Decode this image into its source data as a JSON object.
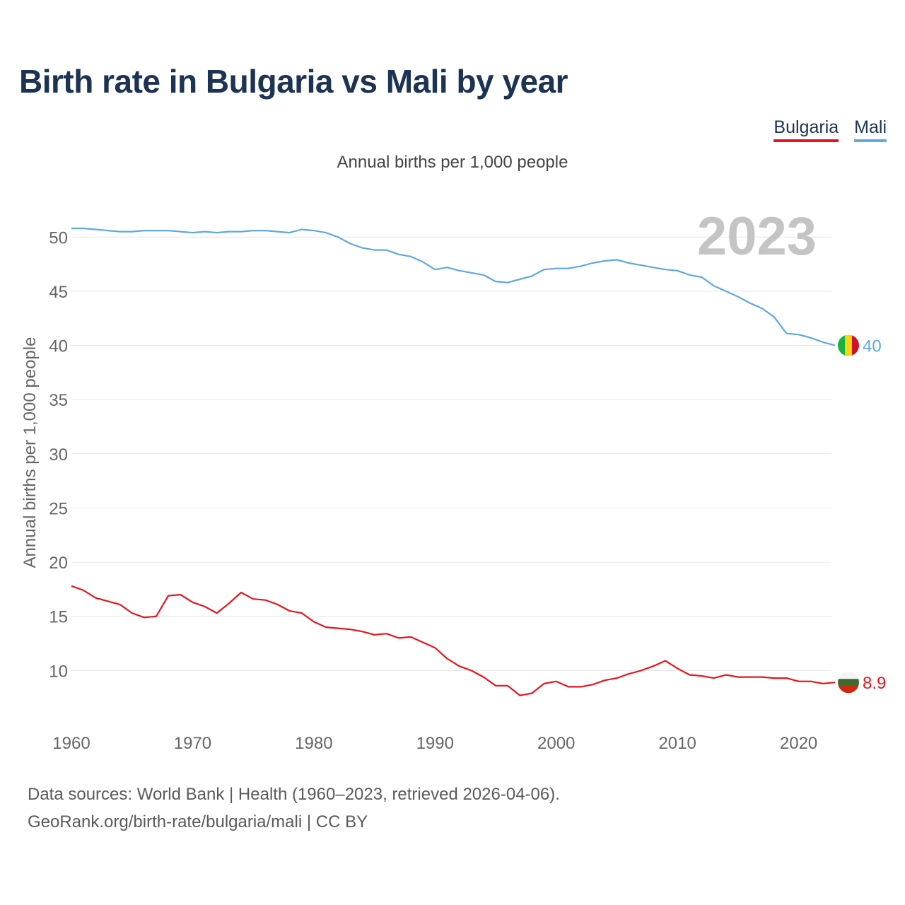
{
  "title": "Birth rate in Bulgaria vs Mali by year",
  "legend": {
    "bulgaria": "Bulgaria",
    "mali": "Mali"
  },
  "subtitle": "Annual births per 1,000 people",
  "footer": {
    "line1": "Data sources: World Bank | Health (1960–2023, retrieved 2026-04-06).",
    "line2": "GeoRank.org/birth-rate/bulgaria/mali | CC BY"
  },
  "chart_data": {
    "type": "line",
    "title": "Birth rate in Bulgaria vs Mali by year",
    "xlabel": "",
    "ylabel": "Annual births per 1,000 people",
    "year_watermark": "2023",
    "xlim": [
      1960,
      2023
    ],
    "ylim": [
      5,
      52.3
    ],
    "x_ticks": [
      1960,
      1970,
      1980,
      1990,
      2000,
      2010,
      2020
    ],
    "y_ticks": [
      10,
      15,
      20,
      25,
      30,
      35,
      40,
      45,
      50
    ],
    "grid": true,
    "legend_position": "top-right",
    "x": [
      1960,
      1961,
      1962,
      1963,
      1964,
      1965,
      1966,
      1967,
      1968,
      1969,
      1970,
      1971,
      1972,
      1973,
      1974,
      1975,
      1976,
      1977,
      1978,
      1979,
      1980,
      1981,
      1982,
      1983,
      1984,
      1985,
      1986,
      1987,
      1988,
      1989,
      1990,
      1991,
      1992,
      1993,
      1994,
      1995,
      1996,
      1997,
      1998,
      1999,
      2000,
      2001,
      2002,
      2003,
      2004,
      2005,
      2006,
      2007,
      2008,
      2009,
      2010,
      2011,
      2012,
      2013,
      2014,
      2015,
      2016,
      2017,
      2018,
      2019,
      2020,
      2021,
      2022,
      2023
    ],
    "series": [
      {
        "name": "Mali",
        "color": "#5ea8e4",
        "end_label": "40",
        "values": [
          50.8,
          50.8,
          50.7,
          50.6,
          50.5,
          50.5,
          50.6,
          50.6,
          50.6,
          50.5,
          50.4,
          50.5,
          50.4,
          50.5,
          50.5,
          50.6,
          50.6,
          50.5,
          50.4,
          50.7,
          50.6,
          50.4,
          50.0,
          49.4,
          49.0,
          48.8,
          48.8,
          48.4,
          48.2,
          47.7,
          47.0,
          47.2,
          46.9,
          46.7,
          46.5,
          45.9,
          45.8,
          46.1,
          46.4,
          47.0,
          47.1,
          47.1,
          47.3,
          47.6,
          47.8,
          47.9,
          47.6,
          47.4,
          47.2,
          47.0,
          46.9,
          46.5,
          46.3,
          45.5,
          45.0,
          44.5,
          43.9,
          43.4,
          42.6,
          41.1,
          41.0,
          40.7,
          40.3,
          40.0
        ]
      },
      {
        "name": "Bulgaria",
        "color": "#e8141b",
        "end_label": "8.9",
        "values": [
          17.8,
          17.4,
          16.7,
          16.4,
          16.1,
          15.3,
          14.9,
          15.0,
          16.9,
          17.0,
          16.3,
          15.9,
          15.3,
          16.2,
          17.2,
          16.6,
          16.5,
          16.1,
          15.5,
          15.3,
          14.5,
          14.0,
          13.9,
          13.8,
          13.6,
          13.3,
          13.4,
          13.0,
          13.1,
          12.6,
          12.1,
          11.1,
          10.4,
          10.0,
          9.4,
          8.6,
          8.6,
          7.7,
          7.9,
          8.8,
          9.0,
          8.5,
          8.5,
          8.7,
          9.1,
          9.3,
          9.7,
          10.0,
          10.4,
          10.9,
          10.2,
          9.6,
          9.5,
          9.3,
          9.6,
          9.4,
          9.4,
          9.4,
          9.3,
          9.3,
          9.0,
          9.0,
          8.8,
          8.9
        ]
      }
    ]
  },
  "flags": {
    "mali": {
      "colors": [
        "#14b53a",
        "#fcd116",
        "#ce1126"
      ]
    },
    "bulgaria": {
      "colors": [
        "#f4f4f4",
        "#3f6b2e",
        "#d62612"
      ]
    }
  }
}
